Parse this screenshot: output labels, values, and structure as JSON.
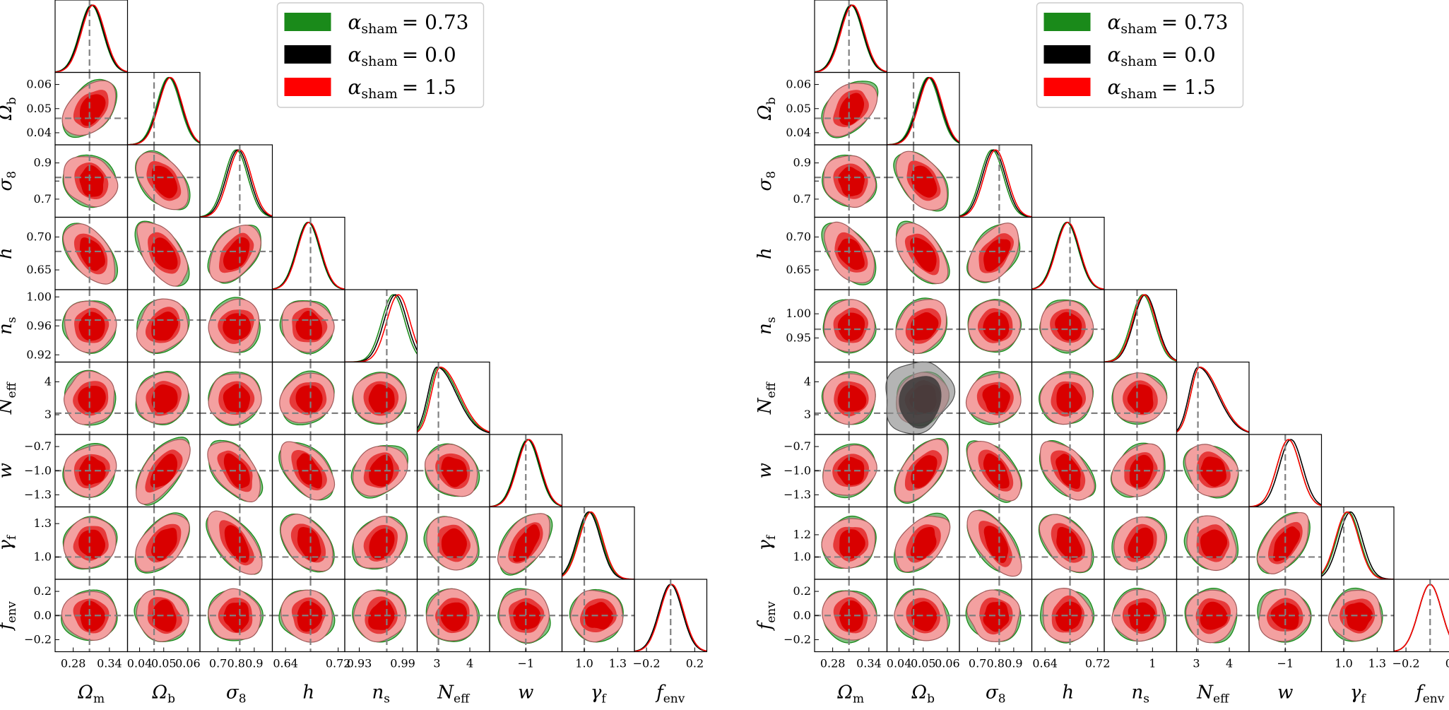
{
  "colors": {
    "green": "#1a8a1a",
    "black": "#000000",
    "red": "#ff0000",
    "red_fill_outer": "#f3a0a0",
    "red_fill_mid": "#e63a3a",
    "red_fill_inner": "#d90000",
    "gray_fill": "#8c8c8c",
    "truth_line": "#808080"
  },
  "chart_data": [
    {
      "type": "corner",
      "panel": "left",
      "legend": [
        {
          "color": "green",
          "label": "α",
          "sub": "sham",
          "value": "= 0.73"
        },
        {
          "color": "black",
          "label": "α",
          "sub": "sham",
          "value": "= 0.0"
        },
        {
          "color": "red",
          "label": "α",
          "sub": "sham",
          "value": "= 1.5"
        }
      ],
      "parameters": [
        {
          "name": "Ω",
          "sub": "m",
          "range": [
            0.25,
            0.37
          ],
          "truth": 0.307,
          "ticks": [
            0.28,
            0.34
          ],
          "tick_labels": [
            "0.28",
            "0.34"
          ],
          "peaks": {
            "green": 0.31,
            "black": 0.311,
            "red": 0.313
          }
        },
        {
          "name": "Ω",
          "sub": "b",
          "range": [
            0.035,
            0.065
          ],
          "truth": 0.046,
          "ticks": [
            0.04,
            0.05,
            0.06
          ],
          "tick_labels": [
            "0.04",
            "0.05",
            "0.06"
          ],
          "peaks": {
            "green": 0.052,
            "black": 0.0525,
            "red": 0.0528
          }
        },
        {
          "name": "σ",
          "sub": "8",
          "range": [
            0.6,
            1.0
          ],
          "truth": 0.82,
          "ticks": [
            0.7,
            0.8,
            0.9
          ],
          "tick_labels": [
            "0.7",
            "",
            "0.9"
          ],
          "xticks": [
            0.7,
            0.8,
            0.9
          ],
          "xtick_labels": [
            "0.7",
            "0.8",
            "0.9"
          ],
          "peaks": {
            "green": 0.8,
            "black": 0.81,
            "red": 0.82
          }
        },
        {
          "name": "h",
          "sub": "",
          "range": [
            0.62,
            0.73
          ],
          "truth": 0.678,
          "ticks": [
            0.65,
            0.7
          ],
          "tick_labels": [
            "0.65",
            "0.70"
          ],
          "xticks": [
            0.64,
            0.72
          ],
          "xtick_labels": [
            "0.64",
            "0.72"
          ],
          "peaks": {
            "green": 0.674,
            "black": 0.675,
            "red": 0.676
          }
        },
        {
          "name": "n",
          "sub": "s",
          "range": [
            0.91,
            1.01
          ],
          "truth": 0.968,
          "ticks": [
            0.92,
            0.96,
            1.0
          ],
          "tick_labels": [
            "0.92",
            "0.96",
            "1.00"
          ],
          "xticks": [
            0.93,
            0.99
          ],
          "xtick_labels": [
            "0.93",
            "0.99"
          ],
          "peaks": {
            "green": 0.977,
            "black": 0.98,
            "red": 0.984
          }
        },
        {
          "name": "N",
          "sub": "eff",
          "range": [
            2.4,
            4.6
          ],
          "truth": 3.046,
          "ticks": [
            3,
            4
          ],
          "tick_labels": [
            "3",
            "4"
          ],
          "peaks": {
            "green": 3.05,
            "black": 3.0,
            "red": 3.1
          }
        },
        {
          "name": "w",
          "sub": "",
          "range": [
            -1.45,
            -0.55
          ],
          "truth": -1.0,
          "ticks": [
            -1.3,
            -1.0,
            -0.7
          ],
          "tick_labels": [
            "−1.3",
            "−1.0",
            "−0.7"
          ],
          "xticks": [
            -1.0
          ],
          "xtick_labels": [
            "−1"
          ],
          "peaks": {
            "green": -0.98,
            "black": -0.97,
            "red": -0.96
          }
        },
        {
          "name": "γ",
          "sub": "f",
          "range": [
            0.8,
            1.45
          ],
          "truth": 1.0,
          "ticks": [
            1.0,
            1.3
          ],
          "tick_labels": [
            "1.0",
            "1.3"
          ],
          "xticks": [
            1.0,
            1.3
          ],
          "xtick_labels": [
            "1.0",
            "1.3"
          ],
          "peaks": {
            "green": 1.05,
            "black": 1.04,
            "red": 1.06
          }
        },
        {
          "name": "f",
          "sub": "env",
          "range": [
            -0.3,
            0.3
          ],
          "truth": 0.0,
          "ticks": [
            -0.2,
            0.0,
            0.2
          ],
          "tick_labels": [
            "−0.2",
            "0.0",
            "0.2"
          ],
          "xticks": [
            -0.2,
            0.2
          ],
          "xtick_labels": [
            "−0.2",
            "0.2"
          ],
          "peaks": {
            "green": 0.0,
            "black": 0.0,
            "red": 0.01
          }
        }
      ]
    },
    {
      "type": "corner",
      "panel": "right",
      "legend": [
        {
          "color": "green",
          "label": "α",
          "sub": "sham",
          "value": "= 0.73"
        },
        {
          "color": "black",
          "label": "α",
          "sub": "sham",
          "value": "= 0.0"
        },
        {
          "color": "red",
          "label": "α",
          "sub": "sham",
          "value": "= 1.5"
        }
      ],
      "parameters": [
        {
          "name": "Ω",
          "sub": "m",
          "range": [
            0.25,
            0.37
          ],
          "truth": 0.307,
          "ticks": [
            0.28,
            0.34
          ],
          "tick_labels": [
            "0.28",
            "0.34"
          ],
          "peaks": {
            "green": 0.31,
            "black": 0.311,
            "red": 0.313
          }
        },
        {
          "name": "Ω",
          "sub": "b",
          "range": [
            0.035,
            0.065
          ],
          "truth": 0.046,
          "ticks": [
            0.04,
            0.05,
            0.06
          ],
          "tick_labels": [
            "0.04",
            "0.05",
            "0.06"
          ],
          "peaks": {
            "green": 0.052,
            "black": 0.0525,
            "red": 0.053
          }
        },
        {
          "name": "σ",
          "sub": "8",
          "range": [
            0.6,
            1.0
          ],
          "truth": 0.82,
          "ticks": [
            0.7,
            0.8,
            0.9
          ],
          "tick_labels": [
            "0.7",
            "",
            "0.9"
          ],
          "xticks": [
            0.7,
            0.8,
            0.9
          ],
          "xtick_labels": [
            "0.7",
            "0.8",
            "0.9"
          ],
          "peaks": {
            "green": 0.78,
            "black": 0.79,
            "red": 0.8
          }
        },
        {
          "name": "h",
          "sub": "",
          "range": [
            0.62,
            0.73
          ],
          "truth": 0.678,
          "ticks": [
            0.65,
            0.7
          ],
          "tick_labels": [
            "0.65",
            "0.70"
          ],
          "xticks": [
            0.64,
            0.72
          ],
          "xtick_labels": [
            "0.64",
            "0.72"
          ],
          "peaks": {
            "green": 0.673,
            "black": 0.674,
            "red": 0.675
          }
        },
        {
          "name": "n",
          "sub": "s",
          "range": [
            0.9,
            1.05
          ],
          "truth": 0.968,
          "ticks": [
            0.95,
            1.0
          ],
          "tick_labels": [
            "0.95",
            "1.00"
          ],
          "xticks": [
            1.0
          ],
          "xtick_labels": [
            "1"
          ],
          "peaks": {
            "green": 0.98,
            "black": 0.985,
            "red": 0.983
          }
        },
        {
          "name": "N",
          "sub": "eff",
          "range": [
            2.4,
            4.6
          ],
          "truth": 3.046,
          "ticks": [
            3,
            4
          ],
          "tick_labels": [
            "3",
            "4"
          ],
          "peaks": {
            "green": 3.1,
            "black": 3.05,
            "red": 3.1
          }
        },
        {
          "name": "w",
          "sub": "",
          "range": [
            -1.45,
            -0.55
          ],
          "truth": -1.0,
          "ticks": [
            -1.3,
            -1.0,
            -0.7
          ],
          "tick_labels": [
            "−1.3",
            "−1.0",
            "−0.7"
          ],
          "xticks": [
            -1.0
          ],
          "xtick_labels": [
            "−1"
          ],
          "peaks": {
            "green": -0.96,
            "black": -0.93,
            "red": -0.96
          }
        },
        {
          "name": "γ",
          "sub": "f",
          "range": [
            0.8,
            1.45
          ],
          "truth": 1.0,
          "ticks": [
            1.0,
            1.2
          ],
          "tick_labels": [
            "1.0",
            "1.2"
          ],
          "xticks": [
            1.0,
            1.3
          ],
          "xtick_labels": [
            "1.0",
            "1.3"
          ],
          "peaks": {
            "green": 1.04,
            "black": 1.06,
            "red": 1.03
          }
        },
        {
          "name": "f",
          "sub": "env",
          "range": [
            -0.3,
            0.3
          ],
          "truth": 0.0,
          "ticks": [
            -0.2,
            0.0,
            0.2
          ],
          "tick_labels": [
            "−0.2",
            "0.0",
            "0.2"
          ],
          "xticks": [
            -0.2,
            0.2
          ],
          "xtick_labels": [
            "−0.2",
            "0.2"
          ],
          "peaks": {
            "green": 0.0,
            "black": 0.0,
            "red": 0.0
          }
        }
      ],
      "special_contours": [
        {
          "row": "N_eff",
          "col": "Ω_b",
          "series": "black",
          "note": "broader gray contour"
        }
      ]
    }
  ]
}
